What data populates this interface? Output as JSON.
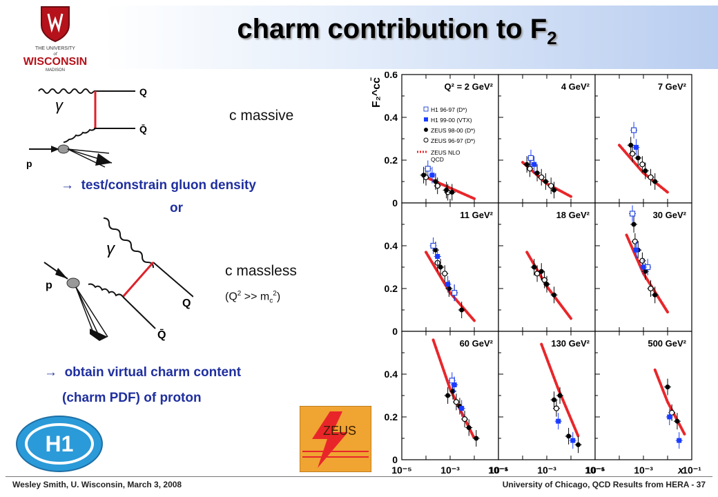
{
  "title": {
    "main": "charm contribution to F",
    "sub": "2"
  },
  "logo": {
    "line1": "THE UNIVERSITY",
    "line2": "of",
    "line3": "WISCONSIN",
    "line4": "MADISON"
  },
  "diagram1": {
    "gamma": "γ",
    "q": "Q",
    "qbar": "Q̄",
    "p": "p"
  },
  "diagram2": {
    "gamma": "γ",
    "q": "Q",
    "qbar": "Q̄",
    "p": "p"
  },
  "text": {
    "c_massive": "c massive",
    "test_constrain": "test/constrain gluon density",
    "or": "or",
    "c_massless": "c massless",
    "massless_note_pre": "(Q",
    "massless_note_sup1": "2",
    "massless_note_mid": " >> m",
    "massless_note_sub": "c",
    "massless_note_sup2": "2",
    "massless_note_post": ")",
    "obtain_line1": "obtain virtual charm content",
    "obtain_line2": "(charm PDF) of proton",
    "arrow": "→"
  },
  "logos": {
    "h1": "H1",
    "zeus": "ZEUS"
  },
  "footer": {
    "left": "Wesley Smith, U. Wisconsin, March 3, 2008",
    "right": "University of Chicago, QCD Results from HERA -  37"
  },
  "chart_data": {
    "type": "scatter",
    "ylabel": "F₂^cc̄",
    "xlabel": "x",
    "x_scale": "log",
    "xlim": [
      1e-05,
      0.1
    ],
    "ylim": [
      0,
      0.6
    ],
    "y_ticks": [
      "0",
      "0.2",
      "0.4",
      "0.6"
    ],
    "x_ticks": [
      "10⁻⁵",
      "10⁻³",
      "10⁻¹"
    ],
    "legend": [
      "H1 96-97 (D*)",
      "H1 99-00 (VTX)",
      "ZEUS 98-00 (D*)",
      "ZEUS 96-97 (D*)",
      "ZEUS NLO",
      "QCD"
    ],
    "colors": {
      "h1_open": "#2a4bd7",
      "h1_filled": "#1a3cff",
      "zeus": "#000000",
      "nlo": "#e8262a"
    },
    "panels": [
      {
        "label": "Q² = 2 GeV²",
        "nlo": [
          [
            0.0001,
            0.12
          ],
          [
            0.001,
            0.07
          ],
          [
            0.01,
            0.02
          ]
        ],
        "h1_open": [
          [
            0.00012,
            0.16
          ]
        ],
        "h1_filled": [
          [
            0.00018,
            0.13
          ]
        ],
        "zeus_filled": [
          [
            8e-05,
            0.13
          ],
          [
            0.00025,
            0.1
          ],
          [
            0.0007,
            0.06
          ],
          [
            0.0012,
            0.05
          ]
        ],
        "zeus_open": [
          [
            0.0001,
            0.12
          ],
          [
            0.0003,
            0.08
          ],
          [
            0.0008,
            0.05
          ]
        ]
      },
      {
        "label": "4 GeV²",
        "nlo": [
          [
            0.0001,
            0.19
          ],
          [
            0.001,
            0.09
          ],
          [
            0.01,
            0.03
          ]
        ],
        "h1_open": [
          [
            0.00022,
            0.21
          ]
        ],
        "h1_filled": [
          [
            0.0003,
            0.18
          ]
        ],
        "zeus_filled": [
          [
            0.00015,
            0.18
          ],
          [
            0.0004,
            0.14
          ],
          [
            0.0009,
            0.1
          ],
          [
            0.002,
            0.06
          ]
        ],
        "zeus_open": [
          [
            0.0002,
            0.16
          ],
          [
            0.0006,
            0.12
          ],
          [
            0.0015,
            0.08
          ]
        ]
      },
      {
        "label": "7 GeV²",
        "nlo": [
          [
            0.0001,
            0.27
          ],
          [
            0.001,
            0.14
          ],
          [
            0.01,
            0.05
          ]
        ],
        "h1_open": [
          [
            0.0004,
            0.34
          ]
        ],
        "h1_filled": [
          [
            0.0005,
            0.26
          ]
        ],
        "zeus_filled": [
          [
            0.0003,
            0.27
          ],
          [
            0.0006,
            0.21
          ],
          [
            0.0012,
            0.15
          ],
          [
            0.003,
            0.1
          ]
        ],
        "zeus_open": [
          [
            0.00035,
            0.23
          ],
          [
            0.0009,
            0.18
          ],
          [
            0.002,
            0.12
          ]
        ]
      },
      {
        "label": "11 GeV²",
        "nlo": [
          [
            0.0001,
            0.37
          ],
          [
            0.001,
            0.18
          ],
          [
            0.01,
            0.05
          ]
        ],
        "h1_open": [
          [
            0.0002,
            0.4
          ],
          [
            0.0015,
            0.18
          ]
        ],
        "h1_filled": [
          [
            0.0003,
            0.35
          ],
          [
            0.0008,
            0.22
          ]
        ],
        "zeus_filled": [
          [
            0.00025,
            0.38
          ],
          [
            0.0004,
            0.3
          ],
          [
            0.0009,
            0.2
          ],
          [
            0.003,
            0.1
          ]
        ],
        "zeus_open": [
          [
            0.0003,
            0.32
          ],
          [
            0.0006,
            0.27
          ],
          [
            0.0015,
            0.18
          ]
        ]
      },
      {
        "label": "18 GeV²",
        "nlo": [
          [
            0.00015,
            0.37
          ],
          [
            0.001,
            0.21
          ],
          [
            0.01,
            0.06
          ]
        ],
        "h1_open": [],
        "h1_filled": [],
        "zeus_filled": [
          [
            0.0003,
            0.3
          ],
          [
            0.0006,
            0.28
          ],
          [
            0.001,
            0.22
          ],
          [
            0.002,
            0.17
          ]
        ],
        "zeus_open": [
          [
            0.0004,
            0.27
          ],
          [
            0.0008,
            0.24
          ]
        ]
      },
      {
        "label": "30 GeV²",
        "nlo": [
          [
            0.0002,
            0.45
          ],
          [
            0.001,
            0.27
          ],
          [
            0.01,
            0.09
          ]
        ],
        "h1_open": [
          [
            0.00035,
            0.55
          ],
          [
            0.0015,
            0.3
          ]
        ],
        "h1_filled": [
          [
            0.0005,
            0.38
          ],
          [
            0.001,
            0.3
          ]
        ],
        "zeus_filled": [
          [
            0.0004,
            0.5
          ],
          [
            0.0006,
            0.38
          ],
          [
            0.0012,
            0.28
          ],
          [
            0.003,
            0.17
          ]
        ],
        "zeus_open": [
          [
            0.00045,
            0.42
          ],
          [
            0.0009,
            0.33
          ],
          [
            0.002,
            0.2
          ]
        ]
      },
      {
        "label": "60 GeV²",
        "nlo": [
          [
            0.0002,
            0.56
          ],
          [
            0.001,
            0.33
          ],
          [
            0.01,
            0.1
          ]
        ],
        "h1_open": [
          [
            0.0012,
            0.37
          ]
        ],
        "h1_filled": [
          [
            0.0015,
            0.35
          ],
          [
            0.003,
            0.24
          ]
        ],
        "zeus_filled": [
          [
            0.0008,
            0.3
          ],
          [
            0.0013,
            0.32
          ],
          [
            0.0025,
            0.25
          ],
          [
            0.006,
            0.15
          ],
          [
            0.012,
            0.1
          ]
        ],
        "zeus_open": [
          [
            0.0018,
            0.27
          ],
          [
            0.004,
            0.19
          ]
        ]
      },
      {
        "label": "130 GeV²",
        "nlo": [
          [
            0.0006,
            0.54
          ],
          [
            0.003,
            0.33
          ],
          [
            0.02,
            0.11
          ]
        ],
        "h1_open": [],
        "h1_filled": [
          [
            0.003,
            0.18
          ],
          [
            0.012,
            0.09
          ]
        ],
        "zeus_filled": [
          [
            0.002,
            0.28
          ],
          [
            0.0035,
            0.3
          ],
          [
            0.008,
            0.11
          ],
          [
            0.02,
            0.07
          ]
        ],
        "zeus_open": [
          [
            0.0025,
            0.24
          ]
        ]
      },
      {
        "label": "500 GeV²",
        "nlo": [
          [
            0.003,
            0.42
          ],
          [
            0.01,
            0.27
          ],
          [
            0.05,
            0.12
          ]
        ],
        "h1_open": [],
        "h1_filled": [
          [
            0.012,
            0.2
          ],
          [
            0.03,
            0.09
          ]
        ],
        "zeus_filled": [
          [
            0.01,
            0.34
          ],
          [
            0.025,
            0.18
          ]
        ],
        "zeus_open": [
          [
            0.015,
            0.22
          ]
        ]
      }
    ]
  }
}
